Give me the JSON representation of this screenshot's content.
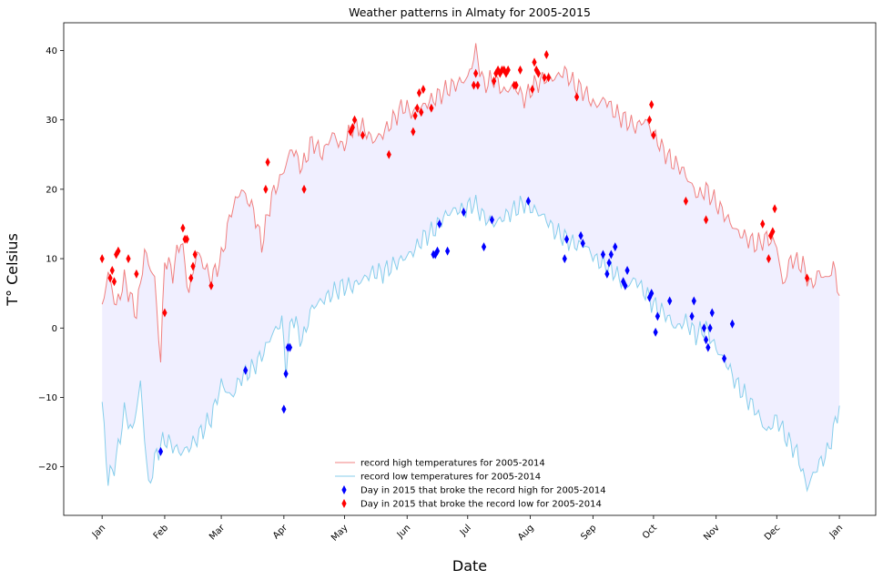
{
  "chart_data": {
    "type": "line",
    "title": "Weather patterns in Almaty for 2005-2015",
    "xlabel": "Date",
    "ylabel": "T° Celsius",
    "x_ticks": [
      "Jan",
      "Feb",
      "Mar",
      "Apr",
      "May",
      "Jun",
      "Jul",
      "Aug",
      "Sep",
      "Oct",
      "Nov",
      "Dec",
      "Jan"
    ],
    "x_tick_days": [
      1,
      32,
      60,
      91,
      121,
      152,
      182,
      213,
      244,
      274,
      305,
      335,
      366
    ],
    "xlim": [
      -18,
      384
    ],
    "ylim": [
      -27,
      44
    ],
    "y_ticks": [
      -20,
      -10,
      0,
      10,
      20,
      30,
      40
    ],
    "grid": false,
    "legend_position": "lower-center",
    "colors": {
      "high_line": "#f08080",
      "low_line": "#87ceeb",
      "fill": "#f0efff",
      "high_break": "#0000ff",
      "low_break": "#ff0000"
    },
    "series": [
      {
        "name": "record high temperatures for 2005-2014",
        "kind": "line",
        "anchors": [
          [
            1,
            3
          ],
          [
            4,
            8
          ],
          [
            8,
            3
          ],
          [
            12,
            7
          ],
          [
            18,
            2
          ],
          [
            22,
            11
          ],
          [
            27,
            7
          ],
          [
            30,
            -5
          ],
          [
            32,
            10
          ],
          [
            36,
            8
          ],
          [
            40,
            13
          ],
          [
            44,
            5
          ],
          [
            48,
            11
          ],
          [
            55,
            7
          ],
          [
            60,
            10
          ],
          [
            65,
            17
          ],
          [
            70,
            20
          ],
          [
            76,
            17
          ],
          [
            80,
            12
          ],
          [
            85,
            19
          ],
          [
            90,
            22
          ],
          [
            95,
            26
          ],
          [
            100,
            23
          ],
          [
            105,
            27
          ],
          [
            110,
            25
          ],
          [
            115,
            28
          ],
          [
            120,
            26
          ],
          [
            125,
            29
          ],
          [
            130,
            29
          ],
          [
            135,
            27
          ],
          [
            140,
            28
          ],
          [
            145,
            30
          ],
          [
            150,
            32
          ],
          [
            155,
            31
          ],
          [
            160,
            32
          ],
          [
            165,
            33
          ],
          [
            170,
            34
          ],
          [
            175,
            35
          ],
          [
            182,
            36
          ],
          [
            186,
            40
          ],
          [
            190,
            35
          ],
          [
            195,
            36
          ],
          [
            200,
            34
          ],
          [
            205,
            35
          ],
          [
            210,
            33
          ],
          [
            215,
            35
          ],
          [
            220,
            36
          ],
          [
            225,
            36
          ],
          [
            230,
            37
          ],
          [
            235,
            35
          ],
          [
            240,
            34
          ],
          [
            245,
            32
          ],
          [
            250,
            33
          ],
          [
            255,
            31
          ],
          [
            260,
            30
          ],
          [
            265,
            29
          ],
          [
            270,
            30
          ],
          [
            274,
            28
          ],
          [
            278,
            26
          ],
          [
            283,
            24
          ],
          [
            288,
            23
          ],
          [
            292,
            21
          ],
          [
            296,
            19
          ],
          [
            300,
            20
          ],
          [
            305,
            18
          ],
          [
            310,
            16
          ],
          [
            315,
            14
          ],
          [
            320,
            13
          ],
          [
            325,
            12
          ],
          [
            330,
            13
          ],
          [
            335,
            12
          ],
          [
            338,
            6
          ],
          [
            342,
            10
          ],
          [
            348,
            9
          ],
          [
            352,
            6
          ],
          [
            356,
            8
          ],
          [
            360,
            7
          ],
          [
            363,
            9
          ],
          [
            366,
            5
          ]
        ]
      },
      {
        "name": "record low temperatures for 2005-2014",
        "kind": "line",
        "anchors": [
          [
            1,
            -11
          ],
          [
            4,
            -22
          ],
          [
            8,
            -19
          ],
          [
            12,
            -12
          ],
          [
            16,
            -15
          ],
          [
            20,
            -8
          ],
          [
            24,
            -23
          ],
          [
            28,
            -18
          ],
          [
            32,
            -16
          ],
          [
            36,
            -17
          ],
          [
            40,
            -18
          ],
          [
            45,
            -17
          ],
          [
            50,
            -15
          ],
          [
            55,
            -13
          ],
          [
            60,
            -8
          ],
          [
            65,
            -10
          ],
          [
            70,
            -7
          ],
          [
            75,
            -6
          ],
          [
            80,
            -4
          ],
          [
            85,
            -1
          ],
          [
            90,
            1
          ],
          [
            92,
            -6
          ],
          [
            95,
            2
          ],
          [
            100,
            -2
          ],
          [
            105,
            3
          ],
          [
            110,
            4
          ],
          [
            115,
            5
          ],
          [
            120,
            6
          ],
          [
            125,
            6
          ],
          [
            130,
            7
          ],
          [
            135,
            8
          ],
          [
            140,
            8
          ],
          [
            145,
            9
          ],
          [
            150,
            10
          ],
          [
            155,
            11
          ],
          [
            160,
            13
          ],
          [
            165,
            14
          ],
          [
            170,
            16
          ],
          [
            175,
            17
          ],
          [
            180,
            17
          ],
          [
            185,
            18
          ],
          [
            190,
            16
          ],
          [
            195,
            15
          ],
          [
            200,
            16
          ],
          [
            205,
            17
          ],
          [
            210,
            18
          ],
          [
            215,
            17
          ],
          [
            220,
            16
          ],
          [
            225,
            14
          ],
          [
            230,
            13
          ],
          [
            235,
            12
          ],
          [
            240,
            12
          ],
          [
            245,
            10
          ],
          [
            250,
            9
          ],
          [
            255,
            8
          ],
          [
            260,
            6
          ],
          [
            265,
            7
          ],
          [
            270,
            5
          ],
          [
            275,
            3
          ],
          [
            280,
            2
          ],
          [
            285,
            0
          ],
          [
            290,
            1
          ],
          [
            295,
            -1
          ],
          [
            300,
            0
          ],
          [
            305,
            -3
          ],
          [
            310,
            -5
          ],
          [
            315,
            -8
          ],
          [
            320,
            -10
          ],
          [
            325,
            -12
          ],
          [
            330,
            -15
          ],
          [
            335,
            -13
          ],
          [
            340,
            -16
          ],
          [
            345,
            -18
          ],
          [
            350,
            -23
          ],
          [
            355,
            -20
          ],
          [
            360,
            -18
          ],
          [
            363,
            -15
          ],
          [
            366,
            -11
          ]
        ]
      },
      {
        "name": "Day in 2015 that broke the record high for 2005-2014",
        "kind": "scatter",
        "marker": "thin_diamond",
        "points": [
          [
            30,
            -17.8
          ],
          [
            72,
            -6.1
          ],
          [
            91,
            -11.7
          ],
          [
            92,
            -6.6
          ],
          [
            93,
            -2.8
          ],
          [
            94,
            -2.8
          ],
          [
            165,
            10.6
          ],
          [
            166,
            10.6
          ],
          [
            167,
            11.1
          ],
          [
            168,
            15
          ],
          [
            172,
            11.1
          ],
          [
            180,
            16.7
          ],
          [
            190,
            11.7
          ],
          [
            194,
            15.6
          ],
          [
            212,
            18.3
          ],
          [
            230,
            10
          ],
          [
            231,
            12.8
          ],
          [
            238,
            13.3
          ],
          [
            239,
            12.2
          ],
          [
            249,
            10.6
          ],
          [
            251,
            7.8
          ],
          [
            252,
            9.4
          ],
          [
            253,
            10.6
          ],
          [
            255,
            11.7
          ],
          [
            259,
            6.7
          ],
          [
            260,
            6.1
          ],
          [
            261,
            8.3
          ],
          [
            272,
            4.4
          ],
          [
            273,
            5
          ],
          [
            275,
            -0.6
          ],
          [
            276,
            1.7
          ],
          [
            282,
            3.9
          ],
          [
            293,
            1.7
          ],
          [
            294,
            3.9
          ],
          [
            299,
            0
          ],
          [
            300,
            -1.7
          ],
          [
            301,
            -2.8
          ],
          [
            302,
            0
          ],
          [
            303,
            2.2
          ],
          [
            309,
            -4.4
          ],
          [
            313,
            0.6
          ]
        ]
      },
      {
        "name": "Day in 2015 that broke the record low for 2005-2014",
        "kind": "scatter",
        "marker": "thin_diamond",
        "points": [
          [
            1,
            10
          ],
          [
            5,
            7.2
          ],
          [
            6,
            8.3
          ],
          [
            7,
            6.7
          ],
          [
            8,
            10.6
          ],
          [
            9,
            11.1
          ],
          [
            14,
            10
          ],
          [
            18,
            7.8
          ],
          [
            32,
            2.2
          ],
          [
            41,
            14.4
          ],
          [
            42,
            12.8
          ],
          [
            43,
            12.8
          ],
          [
            45,
            7.2
          ],
          [
            46,
            8.9
          ],
          [
            47,
            10.6
          ],
          [
            55,
            6.1
          ],
          [
            82,
            20
          ],
          [
            83,
            23.9
          ],
          [
            101,
            20
          ],
          [
            124,
            28.3
          ],
          [
            125,
            28.9
          ],
          [
            126,
            30
          ],
          [
            130,
            27.8
          ],
          [
            143,
            25
          ],
          [
            155,
            28.3
          ],
          [
            156,
            30.6
          ],
          [
            157,
            31.7
          ],
          [
            158,
            33.9
          ],
          [
            159,
            31.1
          ],
          [
            160,
            34.4
          ],
          [
            164,
            31.7
          ],
          [
            185,
            35
          ],
          [
            186,
            36.7
          ],
          [
            187,
            35
          ],
          [
            195,
            35.6
          ],
          [
            196,
            36.7
          ],
          [
            197,
            37.2
          ],
          [
            198,
            36.7
          ],
          [
            199,
            37.2
          ],
          [
            200,
            37.2
          ],
          [
            201,
            36.7
          ],
          [
            202,
            37.2
          ],
          [
            205,
            35
          ],
          [
            206,
            35
          ],
          [
            208,
            37.2
          ],
          [
            214,
            34.4
          ],
          [
            215,
            38.3
          ],
          [
            216,
            37.2
          ],
          [
            217,
            36.7
          ],
          [
            220,
            36.1
          ],
          [
            221,
            39.4
          ],
          [
            222,
            36.1
          ],
          [
            236,
            33.3
          ],
          [
            272,
            30
          ],
          [
            273,
            32.2
          ],
          [
            274,
            27.8
          ],
          [
            290,
            18.3
          ],
          [
            300,
            15.6
          ],
          [
            328,
            15
          ],
          [
            331,
            10
          ],
          [
            332,
            13.3
          ],
          [
            333,
            13.9
          ],
          [
            334,
            17.2
          ],
          [
            350,
            7.2
          ]
        ]
      }
    ],
    "legend": [
      "record high temperatures for 2005-2014",
      "record low temperatures for 2005-2014",
      "Day in 2015 that broke the record high for 2005-2014",
      "Day in 2015 that broke the record low for 2005-2014"
    ]
  }
}
